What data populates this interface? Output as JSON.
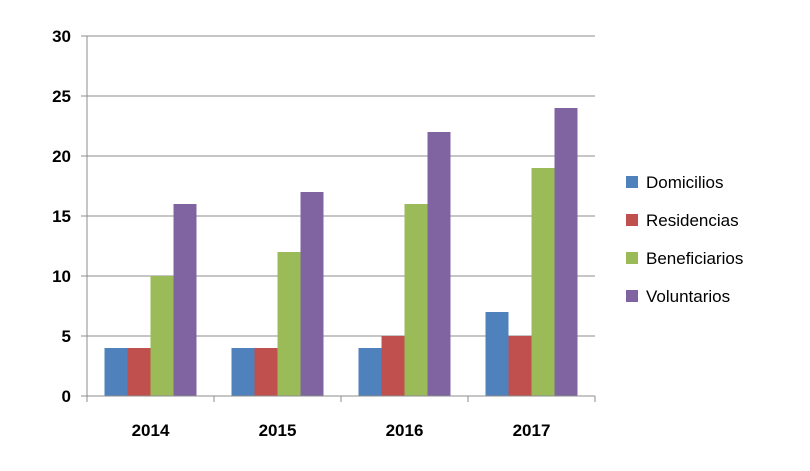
{
  "chart_data": {
    "type": "bar",
    "categories": [
      "2014",
      "2015",
      "2016",
      "2017"
    ],
    "series": [
      {
        "name": "Domicilios",
        "color": "#4F81BD",
        "values": [
          4,
          4,
          4,
          7
        ]
      },
      {
        "name": "Residencias",
        "color": "#C0504D",
        "values": [
          4,
          4,
          5,
          5
        ]
      },
      {
        "name": "Beneficiarios",
        "color": "#9BBB59",
        "values": [
          10,
          12,
          16,
          19
        ]
      },
      {
        "name": "Voluntarios",
        "color": "#8064A2",
        "values": [
          16,
          17,
          22,
          24
        ]
      }
    ],
    "ylim": [
      0,
      30
    ],
    "yticks": [
      "0",
      "5",
      "10",
      "15",
      "20",
      "25",
      "30"
    ],
    "title": "",
    "xlabel": "",
    "ylabel": "",
    "grid": true,
    "legend_position": "right"
  }
}
